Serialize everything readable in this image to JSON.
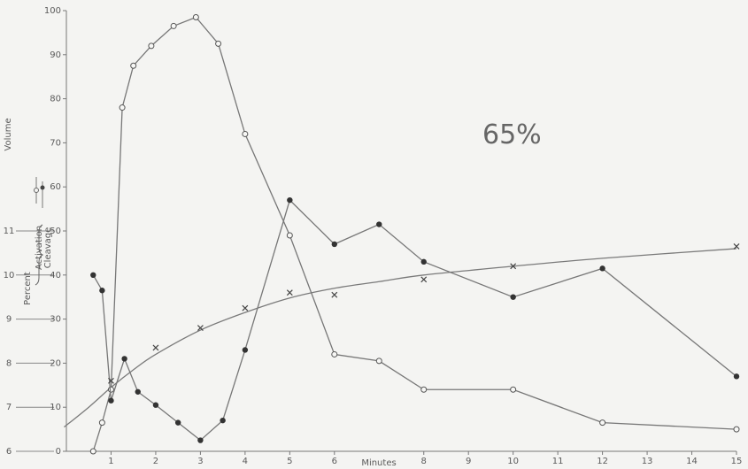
{
  "chart_data": {
    "type": "line",
    "annotation": "65%",
    "xlabel": "Minutes",
    "ylabel_top": "Volume",
    "ylabel_percent": "Percent",
    "ylabel_activation": "Activation",
    "ylabel_cleavage": "Cleavage",
    "xlim": [
      0,
      15
    ],
    "ylim": [
      0,
      100
    ],
    "x_ticks": [
      {
        "value": 1,
        "label": "1"
      },
      {
        "value": 2,
        "label": "2"
      },
      {
        "value": 3,
        "label": "3"
      },
      {
        "value": 4,
        "label": "4"
      },
      {
        "value": 5,
        "label": "5"
      },
      {
        "value": 6,
        "label": "6"
      },
      {
        "value": 8,
        "label": "8"
      },
      {
        "value": 9,
        "label": "9"
      },
      {
        "value": 10,
        "label": "10"
      },
      {
        "value": 11,
        "label": "11"
      },
      {
        "value": 12,
        "label": "12"
      },
      {
        "value": 13,
        "label": "13"
      },
      {
        "value": 14,
        "label": "14"
      },
      {
        "value": 15,
        "label": "15"
      }
    ],
    "percent_ticks": [
      {
        "value": 0,
        "label": "0"
      },
      {
        "value": 10,
        "label": "10"
      },
      {
        "value": 20,
        "label": "20"
      },
      {
        "value": 30,
        "label": "30"
      },
      {
        "value": 40,
        "label": "40"
      },
      {
        "value": 50,
        "label": "50"
      },
      {
        "value": 60,
        "label": "60"
      },
      {
        "value": 70,
        "label": "70"
      },
      {
        "value": 80,
        "label": "80"
      },
      {
        "value": 90,
        "label": "90"
      },
      {
        "value": 100,
        "label": "100"
      }
    ],
    "volume_ticks": [
      {
        "value": 0,
        "label": "6"
      },
      {
        "value": 10,
        "label": "7"
      },
      {
        "value": 20,
        "label": "8"
      },
      {
        "value": 30,
        "label": "9"
      },
      {
        "value": 40,
        "label": "10"
      },
      {
        "value": 50,
        "label": "11"
      }
    ],
    "series": [
      {
        "marker": "open-circle",
        "color": "#777777",
        "points": [
          [
            0.6,
            0
          ],
          [
            0.8,
            6.5
          ],
          [
            1,
            14
          ],
          [
            1.25,
            78
          ],
          [
            1.5,
            87.5
          ],
          [
            1.9,
            92
          ],
          [
            2.4,
            96.5
          ],
          [
            2.9,
            98.5
          ],
          [
            3.4,
            92.5
          ],
          [
            4,
            72
          ],
          [
            5,
            49
          ],
          [
            6,
            22
          ],
          [
            7,
            20.5
          ],
          [
            8,
            14
          ],
          [
            10,
            14
          ],
          [
            12,
            6.5
          ],
          [
            15,
            5
          ]
        ]
      },
      {
        "marker": "filled-circle",
        "color": "#777777",
        "points": [
          [
            0.6,
            40
          ],
          [
            0.8,
            36.5
          ],
          [
            1,
            11.5
          ],
          [
            1.3,
            21
          ],
          [
            1.6,
            13.5
          ],
          [
            2,
            10.5
          ],
          [
            2.5,
            6.5
          ],
          [
            3,
            2.5
          ],
          [
            3.5,
            7
          ],
          [
            4,
            23
          ],
          [
            5,
            57
          ],
          [
            6,
            47
          ],
          [
            7,
            51.5
          ],
          [
            8,
            43
          ],
          [
            10,
            35
          ],
          [
            12,
            41.5
          ],
          [
            15,
            17
          ]
        ]
      },
      {
        "marker": "cross",
        "color": "#777777",
        "points": [
          [
            1,
            16
          ],
          [
            2,
            23.5
          ],
          [
            3,
            28
          ],
          [
            4,
            32.5
          ],
          [
            5,
            36
          ],
          [
            6,
            35.5
          ],
          [
            8,
            39
          ],
          [
            10,
            42
          ],
          [
            15,
            46.5
          ]
        ]
      }
    ],
    "volume_curve": [
      [
        -0.05,
        5.5
      ],
      [
        0.5,
        10
      ],
      [
        1,
        14.5
      ],
      [
        1.5,
        18.5
      ],
      [
        2,
        22
      ],
      [
        3,
        27.5
      ],
      [
        4,
        31.5
      ],
      [
        5,
        34.8
      ],
      [
        6,
        37
      ],
      [
        7,
        38.5
      ],
      [
        8,
        40
      ],
      [
        10,
        42
      ],
      [
        12,
        43.8
      ],
      [
        15,
        46
      ]
    ]
  }
}
